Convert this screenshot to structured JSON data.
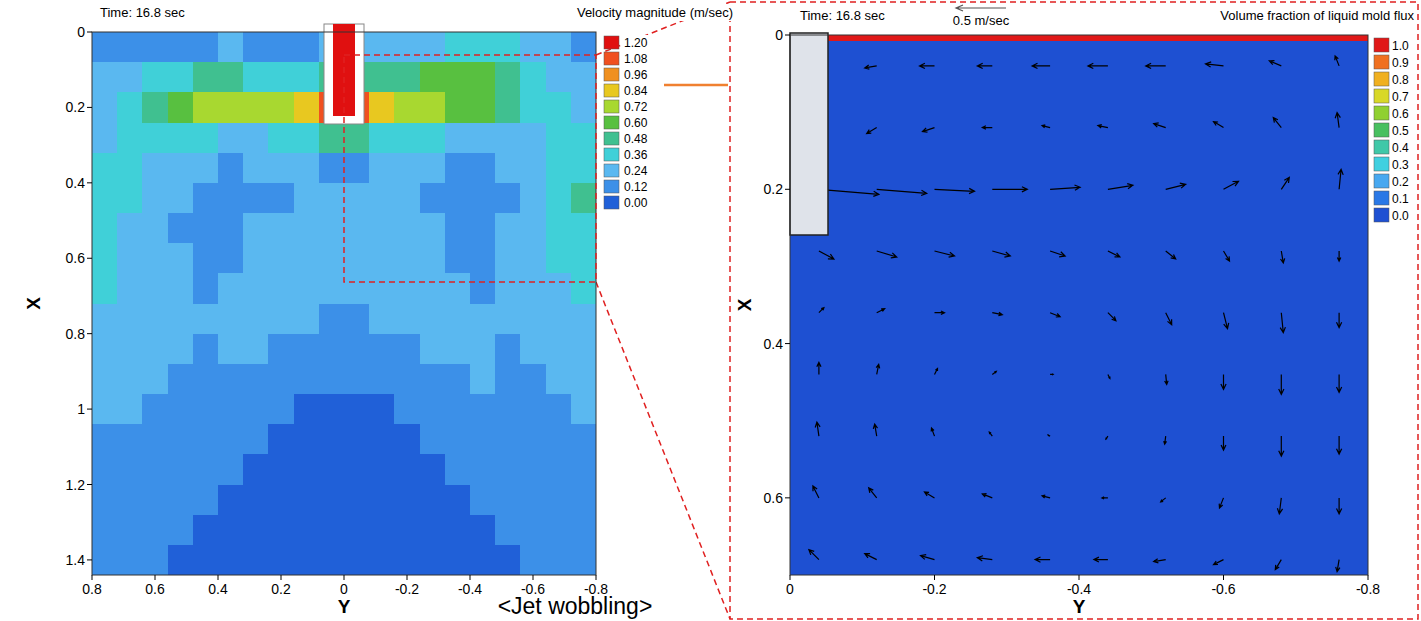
{
  "chart_data": [
    {
      "type": "contour",
      "title": "Time: 16.8 sec",
      "x_label": "Y",
      "y_label": "X",
      "annotation": "<Jet wobbling>",
      "xlim": [
        0.8,
        -0.8
      ],
      "xticks": [
        0.8,
        0.6,
        0.4,
        0.2,
        0,
        -0.2,
        -0.4,
        -0.6,
        -0.8
      ],
      "ylim": [
        1.44,
        0
      ],
      "yticks": [
        0,
        0.2,
        0.4,
        0.6,
        0.8,
        1,
        1.2,
        1.4
      ],
      "nozzle_jet_velocity": 1.2,
      "colorbar": {
        "title": "Velocity magnitude (m/sec)",
        "range": [
          0,
          1.2
        ],
        "ticks": [
          {
            "value": 1.2,
            "label": "1.20"
          },
          1.08,
          0.96,
          0.84,
          0.72,
          {
            "value": 0.6,
            "label": "0.60"
          },
          0.48,
          0.36,
          0.24,
          0.12,
          {
            "value": 0,
            "label": "0.00"
          }
        ],
        "colors": [
          "#e01010",
          "#f05020",
          "#f09020",
          "#e8c820",
          "#a8d830",
          "#58c040",
          "#40c090",
          "#40d0d8",
          "#5ab8f0",
          "#3c90e8",
          "#2060d8"
        ]
      },
      "cells": {
        "x_edges": [
          0.8,
          0.72,
          0.64,
          0.56,
          0.48,
          0.4,
          0.32,
          0.24,
          0.16,
          0.08,
          0,
          -0.08,
          -0.16,
          -0.24,
          -0.32,
          -0.4,
          -0.48,
          -0.56,
          -0.64,
          -0.72,
          -0.8
        ],
        "y_edges": [
          0,
          0.08,
          0.16,
          0.24,
          0.32,
          0.4,
          0.48,
          0.56,
          0.64,
          0.72,
          0.8,
          0.88,
          0.96,
          1.04,
          1.12,
          1.2,
          1.28,
          1.36,
          1.44
        ],
        "values": [
          [
            0.22,
            0.2,
            0.18,
            0.2,
            0.22,
            0.25,
            0.2,
            0.18,
            0.22,
            0.3,
            0.3,
            0.25,
            0.3,
            0.35,
            0.4,
            0.45,
            0.38,
            0.3,
            0.25,
            0.22
          ],
          [
            0.3,
            0.35,
            0.4,
            0.45,
            0.5,
            0.55,
            0.45,
            0.4,
            0.45,
            0.55,
            0.55,
            0.5,
            0.55,
            0.65,
            0.7,
            0.62,
            0.55,
            0.45,
            0.35,
            0.3
          ],
          [
            0.35,
            0.4,
            0.48,
            0.62,
            0.75,
            0.78,
            0.72,
            0.8,
            0.9,
            1.1,
            1.1,
            0.95,
            0.8,
            0.75,
            0.7,
            0.6,
            0.5,
            0.42,
            0.38,
            0.35
          ],
          [
            0.35,
            0.36,
            0.4,
            0.42,
            0.38,
            0.3,
            0.35,
            0.42,
            0.45,
            0.5,
            0.5,
            0.45,
            0.4,
            0.36,
            0.3,
            0.28,
            0.3,
            0.34,
            0.38,
            0.4
          ],
          [
            0.4,
            0.38,
            0.32,
            0.28,
            0.25,
            0.22,
            0.25,
            0.28,
            0.25,
            0.22,
            0.22,
            0.25,
            0.28,
            0.24,
            0.22,
            0.2,
            0.24,
            0.3,
            0.4,
            0.45
          ],
          [
            0.42,
            0.36,
            0.3,
            0.26,
            0.2,
            0.18,
            0.2,
            0.22,
            0.24,
            0.26,
            0.28,
            0.3,
            0.26,
            0.22,
            0.2,
            0.18,
            0.22,
            0.3,
            0.42,
            0.48
          ],
          [
            0.4,
            0.34,
            0.28,
            0.22,
            0.18,
            0.2,
            0.24,
            0.26,
            0.28,
            0.3,
            0.32,
            0.3,
            0.28,
            0.24,
            0.2,
            0.18,
            0.24,
            0.32,
            0.4,
            0.46
          ],
          [
            0.38,
            0.32,
            0.28,
            0.24,
            0.2,
            0.22,
            0.26,
            0.3,
            0.32,
            0.3,
            0.3,
            0.32,
            0.3,
            0.26,
            0.22,
            0.2,
            0.26,
            0.3,
            0.38,
            0.42
          ],
          [
            0.36,
            0.3,
            0.26,
            0.24,
            0.22,
            0.24,
            0.28,
            0.3,
            0.3,
            0.28,
            0.28,
            0.3,
            0.3,
            0.28,
            0.24,
            0.22,
            0.24,
            0.28,
            0.34,
            0.38
          ],
          [
            0.32,
            0.3,
            0.26,
            0.24,
            0.24,
            0.26,
            0.28,
            0.26,
            0.24,
            0.22,
            0.22,
            0.24,
            0.26,
            0.28,
            0.26,
            0.24,
            0.24,
            0.26,
            0.3,
            0.34
          ],
          [
            0.28,
            0.28,
            0.26,
            0.24,
            0.22,
            0.24,
            0.24,
            0.2,
            0.18,
            0.16,
            0.16,
            0.18,
            0.2,
            0.24,
            0.26,
            0.24,
            0.22,
            0.24,
            0.28,
            0.3
          ],
          [
            0.26,
            0.26,
            0.24,
            0.22,
            0.2,
            0.2,
            0.18,
            0.16,
            0.14,
            0.12,
            0.12,
            0.14,
            0.16,
            0.18,
            0.22,
            0.24,
            0.22,
            0.22,
            0.24,
            0.26
          ],
          [
            0.24,
            0.24,
            0.22,
            0.2,
            0.18,
            0.16,
            0.14,
            0.12,
            0.1,
            0.1,
            0.1,
            0.1,
            0.12,
            0.14,
            0.18,
            0.2,
            0.22,
            0.22,
            0.22,
            0.24
          ],
          [
            0.22,
            0.22,
            0.2,
            0.18,
            0.16,
            0.14,
            0.12,
            0.1,
            0.1,
            0.1,
            0.1,
            0.1,
            0.1,
            0.12,
            0.14,
            0.16,
            0.18,
            0.2,
            0.2,
            0.22
          ],
          [
            0.2,
            0.2,
            0.18,
            0.16,
            0.14,
            0.12,
            0.1,
            0.1,
            0.08,
            0.08,
            0.08,
            0.08,
            0.1,
            0.1,
            0.12,
            0.14,
            0.16,
            0.18,
            0.2,
            0.2
          ],
          [
            0.18,
            0.18,
            0.16,
            0.14,
            0.12,
            0.1,
            0.1,
            0.08,
            0.08,
            0.08,
            0.08,
            0.08,
            0.08,
            0.1,
            0.1,
            0.12,
            0.14,
            0.16,
            0.18,
            0.18
          ],
          [
            0.16,
            0.16,
            0.14,
            0.12,
            0.1,
            0.1,
            0.08,
            0.08,
            0.08,
            0.08,
            0.08,
            0.08,
            0.08,
            0.08,
            0.1,
            0.1,
            0.12,
            0.14,
            0.16,
            0.16
          ],
          [
            0.14,
            0.14,
            0.12,
            0.1,
            0.1,
            0.08,
            0.08,
            0.08,
            0.08,
            0.08,
            0.08,
            0.08,
            0.08,
            0.08,
            0.08,
            0.1,
            0.1,
            0.12,
            0.14,
            0.14
          ]
        ]
      }
    },
    {
      "type": "vector",
      "title": "Time: 16.8 sec",
      "x_label": "Y",
      "y_label": "X",
      "xlim": [
        0,
        -0.8
      ],
      "xticks": [
        0,
        -0.2,
        -0.4,
        -0.6,
        -0.8
      ],
      "ylim": [
        0.7,
        0
      ],
      "yticks": [
        0,
        0.2,
        0.4,
        0.6
      ],
      "reference_vector": {
        "value": 0.5,
        "label": "0.5 m/sec"
      },
      "colorbar": {
        "title": "Volume fraction of liquid mold flux",
        "range": [
          0,
          1
        ],
        "ticks": [
          {
            "value": 1,
            "label": "1.0"
          },
          0.9,
          0.8,
          0.7,
          0.6,
          0.5,
          0.4,
          0.3,
          0.2,
          0.1,
          {
            "value": 0,
            "label": "0.0"
          }
        ],
        "colors": [
          "#e01818",
          "#f07020",
          "#f0b020",
          "#d8d828",
          "#90d030",
          "#48c060",
          "#40c8a8",
          "#40d0e0",
          "#48a8f0",
          "#2a78e6",
          "#1e50d2"
        ]
      },
      "cells": {
        "x_edges": [
          0,
          -0.8
        ],
        "y_edges": [
          0,
          0.008,
          0.7
        ],
        "values": [
          [
            1
          ],
          [
            0
          ]
        ]
      },
      "vectors": {
        "x": [
          -0.04,
          -0.12,
          -0.2,
          -0.28,
          -0.36,
          -0.44,
          -0.52,
          -0.6,
          -0.68,
          -0.76
        ],
        "y": [
          0.04,
          0.12,
          0.2,
          0.28,
          0.36,
          0.44,
          0.52,
          0.6,
          0.68
        ],
        "u": [
          [
            0.05,
            0.12,
            0.15,
            0.15,
            0.18,
            0.2,
            0.2,
            0.18,
            0.12,
            0.04
          ],
          [
            0.08,
            0.1,
            0.12,
            0.1,
            0.08,
            0.1,
            0.12,
            0.1,
            0.08,
            0.02
          ],
          [
            -0.6,
            -0.5,
            -0.4,
            -0.35,
            -0.3,
            -0.25,
            -0.2,
            -0.15,
            -0.08,
            -0.02
          ],
          [
            -0.15,
            -0.2,
            -0.2,
            -0.18,
            -0.15,
            -0.12,
            -0.1,
            -0.06,
            -0.02,
            0
          ],
          [
            -0.05,
            -0.08,
            -0.1,
            -0.1,
            -0.1,
            -0.08,
            -0.06,
            -0.04,
            -0.02,
            0
          ],
          [
            0,
            -0.02,
            -0.03,
            -0.04,
            -0.03,
            -0.02,
            -0.01,
            0,
            0,
            0
          ],
          [
            0.02,
            0.02,
            0.03,
            0.03,
            0.02,
            0.02,
            0.01,
            0,
            0,
            0
          ],
          [
            0.06,
            0.08,
            0.1,
            0.1,
            0.08,
            0.06,
            0.05,
            0.04,
            0.02,
            0
          ],
          [
            0.1,
            0.12,
            0.14,
            0.15,
            0.15,
            0.14,
            0.12,
            0.1,
            0.06,
            0.02
          ]
        ],
        "v": [
          [
            0.05,
            0.02,
            0,
            0,
            0,
            0,
            0,
            -0.02,
            -0.05,
            -0.1
          ],
          [
            0.1,
            0.06,
            0.04,
            0,
            -0.02,
            -0.02,
            -0.04,
            -0.06,
            -0.1,
            -0.15
          ],
          [
            0.05,
            0.04,
            0.02,
            0,
            -0.02,
            -0.04,
            -0.05,
            -0.08,
            -0.12,
            -0.2
          ],
          [
            0.08,
            0.06,
            0.05,
            0.05,
            0.05,
            0.06,
            0.08,
            0.1,
            0.12,
            0.1
          ],
          [
            -0.05,
            -0.04,
            0,
            0.02,
            0.04,
            0.08,
            0.12,
            0.16,
            0.2,
            0.15
          ],
          [
            -0.12,
            -0.1,
            -0.06,
            -0.03,
            0,
            0.04,
            0.1,
            0.15,
            0.2,
            0.18
          ],
          [
            -0.14,
            -0.12,
            -0.08,
            -0.04,
            -0.01,
            0.03,
            0.08,
            0.14,
            0.2,
            0.18
          ],
          [
            -0.12,
            -0.1,
            -0.06,
            -0.04,
            -0.02,
            0,
            0.04,
            0.1,
            0.16,
            0.16
          ],
          [
            -0.1,
            -0.06,
            -0.04,
            -0.02,
            0,
            0,
            0.02,
            0.05,
            0.1,
            0.12
          ]
        ]
      }
    }
  ]
}
